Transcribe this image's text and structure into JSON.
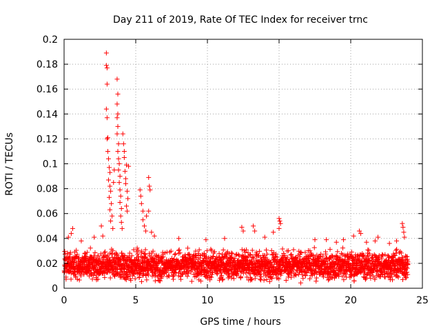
{
  "chart_data": {
    "type": "scatter",
    "title": "Day 211 of 2019, Rate Of TEC Index for receiver trnc",
    "xlabel": "GPS time / hours",
    "ylabel": "ROTI / TECUs",
    "xlim": [
      0,
      25
    ],
    "ylim": [
      0,
      0.2
    ],
    "x_ticks": [
      0,
      5,
      10,
      15,
      20,
      25
    ],
    "y_ticks": [
      0,
      0.02,
      0.04,
      0.06,
      0.08,
      0.1,
      0.12,
      0.14,
      0.16,
      0.18,
      0.2
    ],
    "x_tick_labels": [
      "0",
      "5",
      "10",
      "15",
      "20",
      "25"
    ],
    "y_tick_labels": [
      "0",
      "0.02",
      "0.04",
      "0.06",
      "0.08",
      "0.1",
      "0.12",
      "0.14",
      "0.16",
      "0.18",
      "0.2"
    ],
    "grid": true,
    "marker": "+",
    "color": "#ff0000",
    "series": [
      {
        "name": "ROTI",
        "baseline": {
          "x_range": [
            0,
            24
          ],
          "y_min": 0.003,
          "y_max": 0.034
        },
        "points": [
          {
            "x": 0.3,
            "y": 0.041
          },
          {
            "x": 0.5,
            "y": 0.044
          },
          {
            "x": 0.6,
            "y": 0.048
          },
          {
            "x": 1.2,
            "y": 0.038
          },
          {
            "x": 2.1,
            "y": 0.041
          },
          {
            "x": 2.6,
            "y": 0.05
          },
          {
            "x": 2.7,
            "y": 0.042
          },
          {
            "x": 2.95,
            "y": 0.189
          },
          {
            "x": 2.95,
            "y": 0.179
          },
          {
            "x": 3.0,
            "y": 0.177
          },
          {
            "x": 3.0,
            "y": 0.164
          },
          {
            "x": 2.95,
            "y": 0.144
          },
          {
            "x": 3.0,
            "y": 0.137
          },
          {
            "x": 3.05,
            "y": 0.121
          },
          {
            "x": 3.0,
            "y": 0.12
          },
          {
            "x": 3.05,
            "y": 0.11
          },
          {
            "x": 3.1,
            "y": 0.104
          },
          {
            "x": 3.15,
            "y": 0.097
          },
          {
            "x": 3.2,
            "y": 0.093
          },
          {
            "x": 3.1,
            "y": 0.087
          },
          {
            "x": 3.2,
            "y": 0.082
          },
          {
            "x": 3.25,
            "y": 0.078
          },
          {
            "x": 3.15,
            "y": 0.073
          },
          {
            "x": 3.3,
            "y": 0.068
          },
          {
            "x": 3.2,
            "y": 0.063
          },
          {
            "x": 3.35,
            "y": 0.058
          },
          {
            "x": 3.25,
            "y": 0.054
          },
          {
            "x": 3.4,
            "y": 0.048
          },
          {
            "x": 3.45,
            "y": 0.085
          },
          {
            "x": 3.5,
            "y": 0.095
          },
          {
            "x": 3.7,
            "y": 0.168
          },
          {
            "x": 3.75,
            "y": 0.156
          },
          {
            "x": 3.7,
            "y": 0.148
          },
          {
            "x": 3.75,
            "y": 0.14
          },
          {
            "x": 3.7,
            "y": 0.137
          },
          {
            "x": 3.75,
            "y": 0.13
          },
          {
            "x": 3.7,
            "y": 0.124
          },
          {
            "x": 3.8,
            "y": 0.116
          },
          {
            "x": 3.75,
            "y": 0.11
          },
          {
            "x": 3.8,
            "y": 0.104
          },
          {
            "x": 3.85,
            "y": 0.1
          },
          {
            "x": 3.8,
            "y": 0.095
          },
          {
            "x": 3.9,
            "y": 0.09
          },
          {
            "x": 3.85,
            "y": 0.085
          },
          {
            "x": 3.9,
            "y": 0.079
          },
          {
            "x": 3.95,
            "y": 0.074
          },
          {
            "x": 3.9,
            "y": 0.069
          },
          {
            "x": 4.0,
            "y": 0.064
          },
          {
            "x": 3.95,
            "y": 0.058
          },
          {
            "x": 4.0,
            "y": 0.053
          },
          {
            "x": 4.05,
            "y": 0.048
          },
          {
            "x": 4.1,
            "y": 0.124
          },
          {
            "x": 4.15,
            "y": 0.116
          },
          {
            "x": 4.2,
            "y": 0.11
          },
          {
            "x": 4.2,
            "y": 0.105
          },
          {
            "x": 4.25,
            "y": 0.094
          },
          {
            "x": 4.3,
            "y": 0.088
          },
          {
            "x": 4.3,
            "y": 0.084
          },
          {
            "x": 4.35,
            "y": 0.099
          },
          {
            "x": 4.4,
            "y": 0.078
          },
          {
            "x": 4.45,
            "y": 0.072
          },
          {
            "x": 4.35,
            "y": 0.066
          },
          {
            "x": 4.4,
            "y": 0.062
          },
          {
            "x": 4.5,
            "y": 0.098
          },
          {
            "x": 5.3,
            "y": 0.079
          },
          {
            "x": 5.35,
            "y": 0.074
          },
          {
            "x": 5.4,
            "y": 0.068
          },
          {
            "x": 5.5,
            "y": 0.062
          },
          {
            "x": 5.5,
            "y": 0.055
          },
          {
            "x": 5.6,
            "y": 0.05
          },
          {
            "x": 5.7,
            "y": 0.046
          },
          {
            "x": 5.75,
            "y": 0.058
          },
          {
            "x": 5.9,
            "y": 0.089
          },
          {
            "x": 5.95,
            "y": 0.082
          },
          {
            "x": 6.0,
            "y": 0.079
          },
          {
            "x": 5.9,
            "y": 0.062
          },
          {
            "x": 6.1,
            "y": 0.045
          },
          {
            "x": 6.3,
            "y": 0.042
          },
          {
            "x": 8.0,
            "y": 0.04
          },
          {
            "x": 9.9,
            "y": 0.039
          },
          {
            "x": 11.2,
            "y": 0.04
          },
          {
            "x": 12.4,
            "y": 0.049
          },
          {
            "x": 12.5,
            "y": 0.046
          },
          {
            "x": 13.2,
            "y": 0.05
          },
          {
            "x": 13.3,
            "y": 0.046
          },
          {
            "x": 14.0,
            "y": 0.041
          },
          {
            "x": 14.6,
            "y": 0.045
          },
          {
            "x": 15.0,
            "y": 0.056
          },
          {
            "x": 15.05,
            "y": 0.054
          },
          {
            "x": 15.1,
            "y": 0.052
          },
          {
            "x": 15.0,
            "y": 0.048
          },
          {
            "x": 17.5,
            "y": 0.039
          },
          {
            "x": 18.3,
            "y": 0.039
          },
          {
            "x": 19.0,
            "y": 0.037
          },
          {
            "x": 19.5,
            "y": 0.039
          },
          {
            "x": 20.2,
            "y": 0.042
          },
          {
            "x": 20.6,
            "y": 0.046
          },
          {
            "x": 20.7,
            "y": 0.044
          },
          {
            "x": 21.1,
            "y": 0.037
          },
          {
            "x": 21.7,
            "y": 0.038
          },
          {
            "x": 21.9,
            "y": 0.041
          },
          {
            "x": 22.7,
            "y": 0.036
          },
          {
            "x": 23.2,
            "y": 0.038
          },
          {
            "x": 23.6,
            "y": 0.052
          },
          {
            "x": 23.65,
            "y": 0.049
          },
          {
            "x": 23.7,
            "y": 0.045
          },
          {
            "x": 23.75,
            "y": 0.041
          }
        ]
      }
    ]
  }
}
